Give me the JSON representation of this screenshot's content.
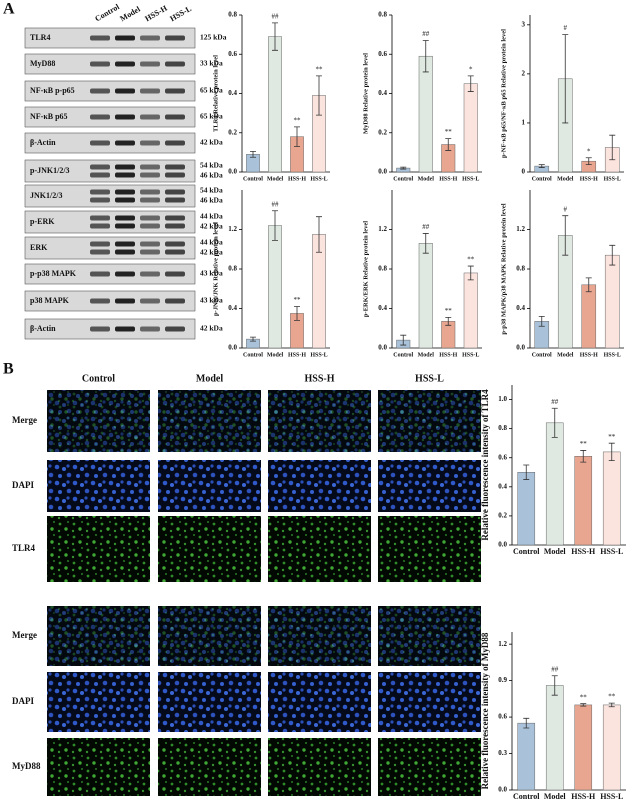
{
  "panel_labels": [
    "A",
    "B"
  ],
  "blot": {
    "lanes": [
      "Control",
      "Model",
      "HSS-H",
      "HSS-L"
    ],
    "rows": [
      {
        "protein": "TLR4",
        "sizes": [
          "125 kDa"
        ]
      },
      {
        "protein": "MyD88",
        "sizes": [
          "33 kDa"
        ]
      },
      {
        "protein": "NF-κB p-p65",
        "sizes": [
          "65 kDa"
        ]
      },
      {
        "protein": "NF-κB p65",
        "sizes": [
          "65 kDa"
        ]
      },
      {
        "protein": "β-Actin",
        "sizes": [
          "42 kDa"
        ]
      },
      {
        "protein": "p-JNK1/2/3",
        "sizes": [
          "54 kDa",
          "46 kDa"
        ]
      },
      {
        "protein": "JNK1/2/3",
        "sizes": [
          "54 kDa",
          "46 kDa"
        ]
      },
      {
        "protein": "p-ERK",
        "sizes": [
          "44 kDa",
          "42 kDa"
        ]
      },
      {
        "protein": "ERK",
        "sizes": [
          "44 kDa",
          "42 kDa"
        ]
      },
      {
        "protein": "p-p38 MAPK",
        "sizes": [
          "43 kDa"
        ]
      },
      {
        "protein": "p38 MAPK",
        "sizes": [
          "43 kDa"
        ]
      },
      {
        "protein": "β-Actin",
        "sizes": [
          "42 kDa"
        ]
      }
    ]
  },
  "fluorescence": {
    "columns": [
      "Control",
      "Model",
      "HSS-H",
      "HSS-L"
    ],
    "rows": [
      "Merge",
      "DAPI",
      "TLR4",
      "Merge",
      "DAPI",
      "MyD88"
    ]
  },
  "chart_data": [
    {
      "type": "bar",
      "y_label": "TLR4 Relative protein level",
      "categories": [
        "Control",
        "Model",
        "HSS-H",
        "HSS-L"
      ],
      "values": [
        0.09,
        0.69,
        0.18,
        0.39
      ],
      "errors": [
        0.015,
        0.07,
        0.05,
        0.1
      ],
      "labels": [
        null,
        "##",
        "**",
        "**"
      ],
      "colors": [
        "#a9c2d9",
        "#dfe8e1",
        "#e8a58f",
        "#fbe3de"
      ],
      "ylim": [
        0,
        0.8
      ],
      "yticks": [
        {
          "value": 0,
          "label": "0.0"
        },
        0.2,
        0.4,
        0.6,
        0.8
      ]
    },
    {
      "type": "bar",
      "y_label": "MyD88 Relative protein level",
      "categories": [
        "Control",
        "Model",
        "HSS-H",
        "HSS-L"
      ],
      "values": [
        0.02,
        0.59,
        0.14,
        0.45
      ],
      "errors": [
        0.005,
        0.08,
        0.03,
        0.04
      ],
      "labels": [
        null,
        "##",
        "**",
        "*"
      ],
      "colors": [
        "#a9c2d9",
        "#dfe8e1",
        "#e8a58f",
        "#fbe3de"
      ],
      "ylim": [
        0,
        0.8
      ],
      "yticks": [
        {
          "value": 0,
          "label": "0.0"
        },
        0.2,
        0.4,
        0.6,
        0.8
      ]
    },
    {
      "type": "bar",
      "y_label": "p-NF-κB p65/NF-κB p65 Relative protein level",
      "categories": [
        "Control",
        "Model",
        "HSS-H",
        "HSS-L"
      ],
      "values": [
        0.12,
        1.9,
        0.22,
        0.5
      ],
      "errors": [
        0.03,
        0.9,
        0.07,
        0.25
      ],
      "labels": [
        null,
        "#",
        "*",
        null
      ],
      "colors": [
        "#a9c2d9",
        "#dfe8e1",
        "#e8a58f",
        "#fbe3de"
      ],
      "ylim": [
        0,
        3.2
      ],
      "yticks": [
        0,
        1,
        2,
        3
      ]
    },
    {
      "type": "bar",
      "y_label": "p-JNK/JNK Relative protein level",
      "categories": [
        "Control",
        "Model",
        "HSS-H",
        "HSS-L"
      ],
      "values": [
        0.09,
        1.24,
        0.35,
        1.15
      ],
      "errors": [
        0.02,
        0.15,
        0.07,
        0.18
      ],
      "labels": [
        null,
        "##",
        "**",
        null
      ],
      "colors": [
        "#a9c2d9",
        "#dfe8e1",
        "#e8a58f",
        "#fbe3de"
      ],
      "ylim": [
        0,
        1.6
      ],
      "yticks": [
        {
          "value": 0,
          "label": "0.0"
        },
        0.4,
        0.8,
        1.2
      ]
    },
    {
      "type": "bar",
      "y_label": "p-ERK/ERK Relative protein level",
      "categories": [
        "Control",
        "Model",
        "HSS-H",
        "HSS-L"
      ],
      "values": [
        0.08,
        1.06,
        0.27,
        0.76
      ],
      "errors": [
        0.05,
        0.1,
        0.04,
        0.07
      ],
      "labels": [
        null,
        "##",
        "**",
        "**"
      ],
      "colors": [
        "#a9c2d9",
        "#dfe8e1",
        "#e8a58f",
        "#fbe3de"
      ],
      "ylim": [
        0,
        1.6
      ],
      "yticks": [
        {
          "value": 0,
          "label": "0.0"
        },
        0.4,
        0.8,
        1.2
      ]
    },
    {
      "type": "bar",
      "y_label": "p-p38 MAPK/p38 MAPK Relative protein level",
      "categories": [
        "Control",
        "Model",
        "HSS-H",
        "HSS-L"
      ],
      "values": [
        0.27,
        1.14,
        0.64,
        0.94
      ],
      "errors": [
        0.05,
        0.2,
        0.07,
        0.1
      ],
      "labels": [
        null,
        "#",
        null,
        null
      ],
      "colors": [
        "#a9c2d9",
        "#dfe8e1",
        "#e8a58f",
        "#fbe3de"
      ],
      "ylim": [
        0,
        1.6
      ],
      "yticks": [
        {
          "value": 0,
          "label": "0.0"
        },
        0.4,
        0.8,
        1.2
      ]
    },
    {
      "type": "bar",
      "y_label": "Relative fluorescence intensity of TLR4",
      "categories": [
        "Control",
        "Model",
        "HSS-H",
        "HSS-L"
      ],
      "values": [
        0.5,
        0.84,
        0.61,
        0.64
      ],
      "errors": [
        0.05,
        0.1,
        0.04,
        0.06
      ],
      "labels": [
        null,
        "##",
        "**",
        "**"
      ],
      "colors": [
        "#a9c2d9",
        "#dfe8e1",
        "#e8a58f",
        "#fbe3de"
      ],
      "ylim": [
        0,
        1.1
      ],
      "yticks": [
        {
          "value": 0,
          "label": "0.0"
        },
        0.2,
        0.4,
        0.6,
        0.8,
        {
          "value": 1,
          "label": "1.0"
        }
      ]
    },
    {
      "type": "bar",
      "y_label": "Relative fluorescence intensity of MyD88",
      "categories": [
        "Control",
        "Model",
        "HSS-H",
        "HSS-L"
      ],
      "values": [
        0.55,
        0.86,
        0.7,
        0.7
      ],
      "errors": [
        0.04,
        0.08,
        0.01,
        0.015
      ],
      "labels": [
        null,
        "##",
        "**",
        "**"
      ],
      "colors": [
        "#a9c2d9",
        "#dfe8e1",
        "#e8a58f",
        "#fbe3de"
      ],
      "ylim": [
        0,
        1.3
      ],
      "yticks": [
        {
          "value": 0,
          "label": "0.0"
        },
        0.3,
        0.6,
        0.9,
        1.2
      ]
    }
  ]
}
